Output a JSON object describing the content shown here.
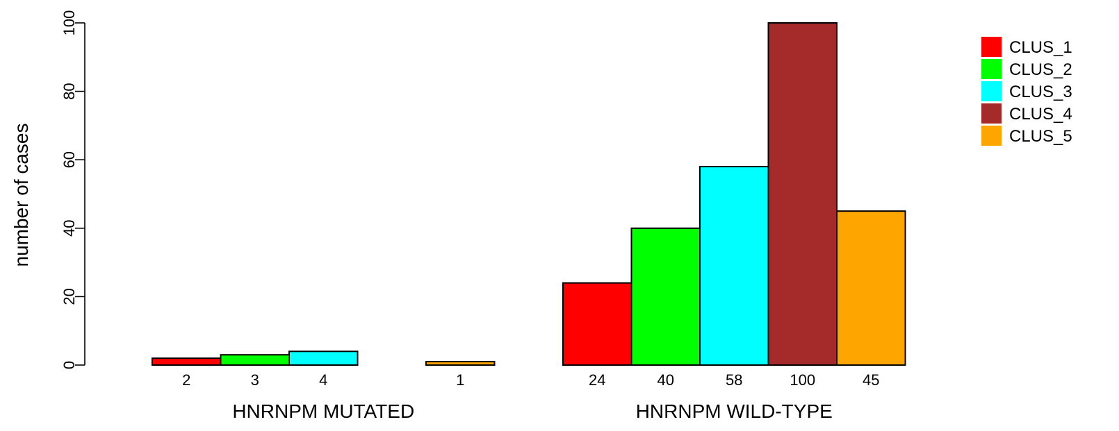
{
  "chart_data": {
    "type": "bar",
    "ylabel": "number of cases",
    "ylim": [
      0,
      100
    ],
    "yticks": [
      0,
      20,
      40,
      60,
      80,
      100
    ],
    "groups": [
      {
        "label": "HNRNPM MUTATED",
        "values": [
          2,
          3,
          4,
          0,
          1
        ],
        "value_labels": [
          "2",
          "3",
          "4",
          "",
          "1"
        ]
      },
      {
        "label": "HNRNPM WILD-TYPE",
        "values": [
          24,
          40,
          58,
          100,
          45
        ],
        "value_labels": [
          "24",
          "40",
          "58",
          "100",
          "45"
        ]
      }
    ],
    "series": [
      {
        "name": "CLUS_1",
        "color": "#ff0000"
      },
      {
        "name": "CLUS_2",
        "color": "#00ff00"
      },
      {
        "name": "CLUS_3",
        "color": "#00ffff"
      },
      {
        "name": "CLUS_4",
        "color": "#a52a2a"
      },
      {
        "name": "CLUS_5",
        "color": "#ffa500"
      }
    ],
    "legend_position": "top-right",
    "grid": false
  }
}
